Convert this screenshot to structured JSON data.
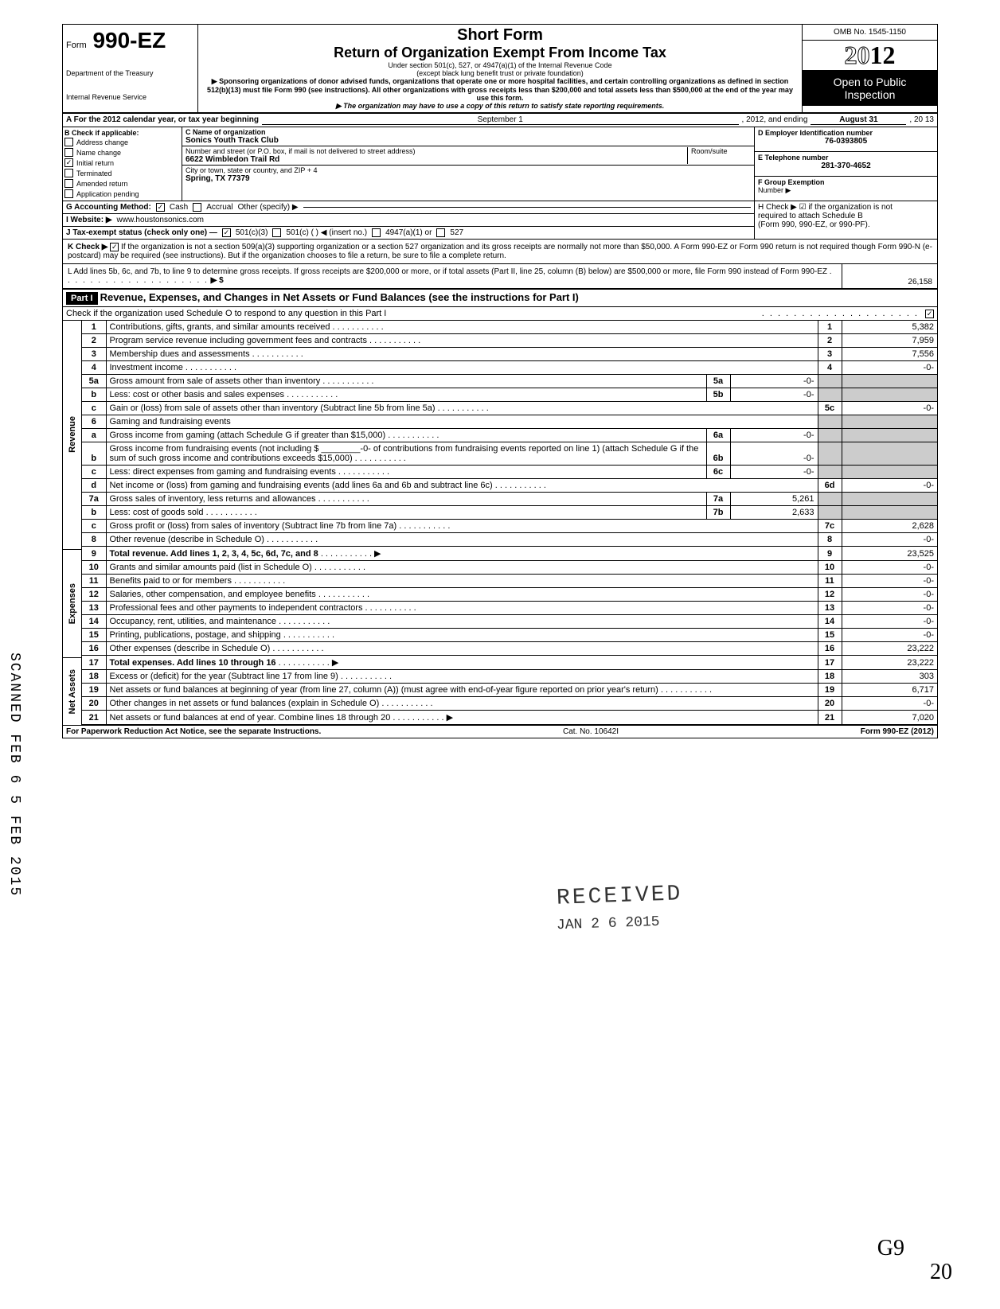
{
  "header": {
    "form_prefix": "Form",
    "form_number": "990-EZ",
    "dept1": "Department of the Treasury",
    "dept2": "Internal Revenue Service",
    "short_form": "Short Form",
    "main_title": "Return of Organization Exempt From Income Tax",
    "sub1": "Under section 501(c), 527, or 4947(a)(1) of the Internal Revenue Code",
    "sub2": "(except black lung benefit trust or private foundation)",
    "sub3": "▶ Sponsoring organizations of donor advised funds, organizations that operate one or more hospital facilities, and certain controlling organizations as defined in section 512(b)(13) must file Form 990 (see instructions). All other organizations with gross receipts less than $200,000 and total assets less than $500,000 at the end of the year may use this form.",
    "sub4": "▶ The organization may have to use a copy of this return to satisfy state reporting requirements.",
    "omb": "OMB No. 1545-1150",
    "year_pre": "20",
    "year_bold": "12",
    "open1": "Open to Public",
    "open2": "Inspection"
  },
  "lineA": {
    "label": "A For the 2012 calendar year, or tax year beginning",
    "begin": "September 1",
    "mid": ", 2012, and ending",
    "end": "August 31",
    "yr": ", 20  13"
  },
  "B": {
    "label": "B  Check if applicable:",
    "opts": [
      "Address change",
      "Name change",
      "Initial return",
      "Terminated",
      "Amended return",
      "Application pending"
    ],
    "checked_index": 2
  },
  "C": {
    "label_name": "C  Name of organization",
    "name": "Sonics Youth Track Club",
    "label_addr": "Number and street (or P.O. box, if mail is not delivered to street address)",
    "room": "Room/suite",
    "addr": "6622 Wimbledon Trail Rd",
    "label_city": "City or town, state or country, and ZIP + 4",
    "city": "Spring, TX 77379"
  },
  "D": {
    "label": "D Employer Identification number",
    "value": "76-0393805"
  },
  "E": {
    "label": "E Telephone number",
    "value": "281-370-4652"
  },
  "F": {
    "label": "F Group Exemption",
    "label2": "Number ▶",
    "value": ""
  },
  "G": {
    "label": "G Accounting Method:",
    "cash": "Cash",
    "accrual": "Accrual",
    "other": "Other (specify) ▶",
    "cash_checked": true
  },
  "I": {
    "label": "I  Website: ▶",
    "value": "www.houstonsonics.com"
  },
  "J": {
    "label": "J Tax-exempt status (check only one) —",
    "opt1": "501(c)(3)",
    "opt2": "501(c) (        ) ◀ (insert no.)",
    "opt3": "4947(a)(1) or",
    "opt4": "527",
    "checked": 0
  },
  "H": {
    "line1": "H Check ▶ ☑ if the organization is not",
    "line2": "required to attach Schedule B",
    "line3": "(Form 990, 990-EZ, or 990-PF)."
  },
  "K": {
    "label": "K Check ▶",
    "checked": true,
    "text": "If the organization is not a section 509(a)(3) supporting organization or a section 527 organization and its gross receipts are normally not more than $50,000. A Form 990-EZ or Form 990 return is not required though Form 990-N (e-postcard) may be required (see instructions). But if the organization chooses to file a return, be sure to file a complete return."
  },
  "L": {
    "text": "L Add lines 5b, 6c, and 7b, to line 9 to determine gross receipts. If gross receipts are $200,000 or more, or if total assets (Part II, line 25, column (B) below) are $500,000 or more, file Form 990 instead of Form 990-EZ",
    "arrow": "▶ $",
    "amount": "26,158"
  },
  "part1": {
    "label": "Part I",
    "title": "Revenue, Expenses, and Changes in Net Assets or Fund Balances (see the instructions for Part I)",
    "check_line": "Check if the organization used Schedule O to respond to any question in this Part I",
    "checked": true
  },
  "sections": {
    "revenue": "Revenue",
    "expenses": "Expenses",
    "netassets": "Net Assets"
  },
  "lines": [
    {
      "n": "1",
      "desc": "Contributions, gifts, grants, and similar amounts received",
      "ln": "1",
      "amt": "5,382"
    },
    {
      "n": "2",
      "desc": "Program service revenue including government fees and contracts",
      "ln": "2",
      "amt": "7,959"
    },
    {
      "n": "3",
      "desc": "Membership dues and assessments",
      "ln": "3",
      "amt": "7,556"
    },
    {
      "n": "4",
      "desc": "Investment income",
      "ln": "4",
      "amt": "-0-"
    },
    {
      "n": "5a",
      "desc": "Gross amount from sale of assets other than inventory",
      "sub": "5a",
      "subamt": "-0-",
      "grey": true
    },
    {
      "n": "b",
      "desc": "Less: cost or other basis and sales expenses",
      "sub": "5b",
      "subamt": "-0-",
      "grey": true
    },
    {
      "n": "c",
      "desc": "Gain or (loss) from sale of assets other than inventory (Subtract line 5b from line 5a)",
      "ln": "5c",
      "amt": "-0-"
    },
    {
      "n": "6",
      "desc": "Gaming and fundraising events",
      "grey": true
    },
    {
      "n": "a",
      "desc": "Gross income from gaming (attach Schedule G if greater than $15,000)",
      "sub": "6a",
      "subamt": "-0-",
      "grey": true
    },
    {
      "n": "b",
      "desc": "Gross income from fundraising events (not including  $ ________-0- of contributions from fundraising events reported on line 1) (attach Schedule G if the sum of such gross income and contributions exceeds $15,000)",
      "sub": "6b",
      "subamt": "-0-",
      "grey": true
    },
    {
      "n": "c",
      "desc": "Less: direct expenses from gaming and fundraising events",
      "sub": "6c",
      "subamt": "-0-",
      "grey": true
    },
    {
      "n": "d",
      "desc": "Net income or (loss) from gaming and fundraising events (add lines 6a and 6b and subtract line 6c)",
      "ln": "6d",
      "amt": "-0-"
    },
    {
      "n": "7a",
      "desc": "Gross sales of inventory, less returns and allowances",
      "sub": "7a",
      "subamt": "5,261",
      "grey": true
    },
    {
      "n": "b",
      "desc": "Less: cost of goods sold",
      "sub": "7b",
      "subamt": "2,633",
      "grey": true
    },
    {
      "n": "c",
      "desc": "Gross profit or (loss) from sales of inventory (Subtract line 7b from line 7a)",
      "ln": "7c",
      "amt": "2,628"
    },
    {
      "n": "8",
      "desc": "Other revenue (describe in Schedule O)",
      "ln": "8",
      "amt": "-0-"
    },
    {
      "n": "9",
      "desc": "Total revenue. Add lines 1, 2, 3, 4, 5c, 6d, 7c, and 8",
      "ln": "9",
      "amt": "23,525",
      "bold": true,
      "arrow": true
    }
  ],
  "exp_lines": [
    {
      "n": "10",
      "desc": "Grants and similar amounts paid (list in Schedule O)",
      "ln": "10",
      "amt": "-0-"
    },
    {
      "n": "11",
      "desc": "Benefits paid to or for members",
      "ln": "11",
      "amt": "-0-"
    },
    {
      "n": "12",
      "desc": "Salaries, other compensation, and employee benefits",
      "ln": "12",
      "amt": "-0-"
    },
    {
      "n": "13",
      "desc": "Professional fees and other payments to independent contractors",
      "ln": "13",
      "amt": "-0-"
    },
    {
      "n": "14",
      "desc": "Occupancy, rent, utilities, and maintenance",
      "ln": "14",
      "amt": "-0-"
    },
    {
      "n": "15",
      "desc": "Printing, publications, postage, and shipping",
      "ln": "15",
      "amt": "-0-"
    },
    {
      "n": "16",
      "desc": "Other expenses (describe in Schedule O)",
      "ln": "16",
      "amt": "23,222"
    },
    {
      "n": "17",
      "desc": "Total expenses. Add lines 10 through 16",
      "ln": "17",
      "amt": "23,222",
      "bold": true,
      "arrow": true
    }
  ],
  "na_lines": [
    {
      "n": "18",
      "desc": "Excess or (deficit) for the year (Subtract line 17 from line 9)",
      "ln": "18",
      "amt": "303"
    },
    {
      "n": "19",
      "desc": "Net assets or fund balances at beginning of year (from line 27, column (A)) (must agree with end-of-year figure reported on prior year's return)",
      "ln": "19",
      "amt": "6,717"
    },
    {
      "n": "20",
      "desc": "Other changes in net assets or fund balances (explain in Schedule O)",
      "ln": "20",
      "amt": "-0-"
    },
    {
      "n": "21",
      "desc": "Net assets or fund balances at end of year. Combine lines 18 through 20",
      "ln": "21",
      "amt": "7,020",
      "arrow": true
    }
  ],
  "footer": {
    "left": "For Paperwork Reduction Act Notice, see the separate Instructions.",
    "mid": "Cat. No. 10642I",
    "right": "Form 990-EZ (2012)"
  },
  "stamps": {
    "received": "RECEIVED",
    "date": "JAN 2 6 2015",
    "scanned": "SCANNED  FEB 6  5 FEB 2015",
    "hand1": "G9",
    "hand2": "20"
  }
}
